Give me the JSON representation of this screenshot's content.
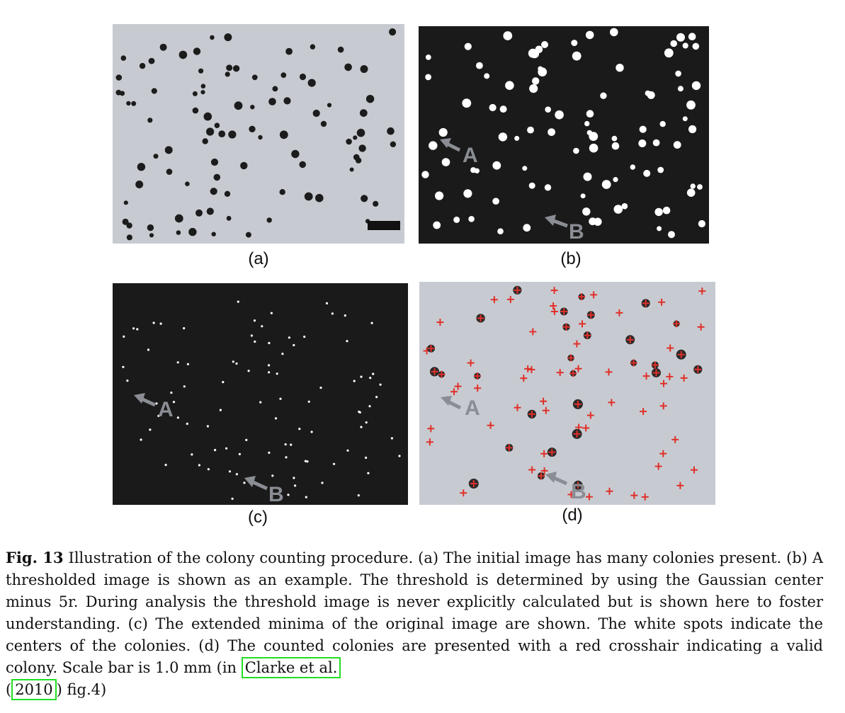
{
  "panels": {
    "a": {
      "label": "(a)"
    },
    "b": {
      "label": "(b)",
      "arrow_labels": [
        "A",
        "B"
      ]
    },
    "c": {
      "label": "(c)",
      "arrow_labels": [
        "A",
        "B"
      ]
    },
    "d": {
      "label": "(d)",
      "arrow_labels": [
        "A",
        "B"
      ]
    }
  },
  "caption": {
    "fig_label": "Fig. 13",
    "text": "Illustration of the colony counting procedure. (a) The initial image has many colonies present. (b) A thresholded image is shown as an example. The threshold is determined by using the Gaussian center minus 5r. During analysis the threshold image is never explicitly calculated but is shown here to foster understanding. (c) The extended minima of the original image are shown. The white spots indicate the centers of the colonies. (d) The counted colonies are presented with a red crosshair indicating a valid colony. Scale bar is 1.0 mm (in",
    "cite_authors": "Clarke et al.",
    "cite_open": "(",
    "cite_year": "2010",
    "cite_close": ") fig.4)"
  },
  "colors": {
    "plate_background": "#c7cbd1",
    "threshold_background": "#1a1a1a",
    "colony_dark": "#1c1c1c",
    "colony_white": "#ffffff",
    "crosshair_red": "#e0302a",
    "arrow_gray": "#8a8e94",
    "citation_box": "#22dd22"
  }
}
